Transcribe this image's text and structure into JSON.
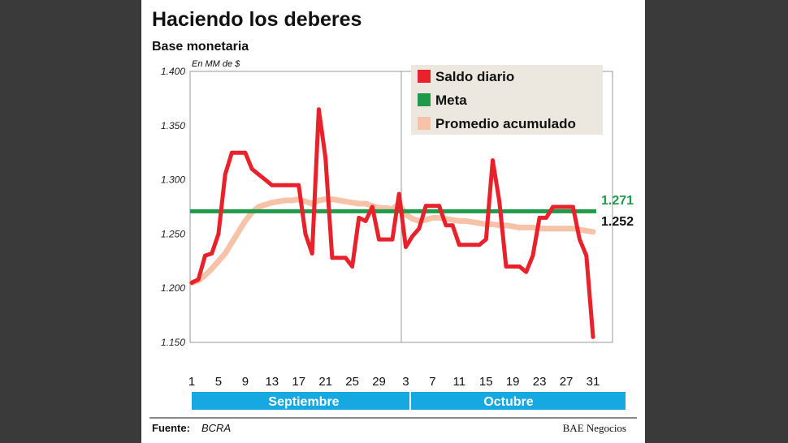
{
  "header": {
    "title": "Haciendo los deberes",
    "subtitle": "Base monetaria",
    "unit_note": "En MM de $"
  },
  "footer": {
    "source_label": "Fuente:",
    "source_value": "BCRA",
    "brand": "BAE Negocios"
  },
  "months": [
    "Septiembre",
    "Octubre"
  ],
  "end_labels": {
    "meta": "1.271",
    "promedio": "1.252"
  },
  "colors": {
    "saldo": "#e8212b",
    "meta": "#1e9a4a",
    "promedio": "#f6c3a8",
    "month_band": "#16a8e0"
  },
  "chart_data": {
    "type": "line",
    "title": "Haciendo los deberes",
    "subtitle": "Base monetaria",
    "ylabel": "En MM de $",
    "ylim": [
      1150,
      1400
    ],
    "yticks": [
      "1.150",
      "1.200",
      "1.250",
      "1.300",
      "1.350",
      "1.400"
    ],
    "xticks": [
      "1",
      "5",
      "9",
      "13",
      "17",
      "21",
      "25",
      "29",
      "3",
      "7",
      "11",
      "15",
      "19",
      "23",
      "27",
      "31"
    ],
    "grid": "vertical line at month boundary",
    "legend_position": "top-right",
    "legend": [
      "Saldo diario",
      "Meta",
      "Promedio acumulado"
    ],
    "x_days": [
      1,
      2,
      3,
      4,
      5,
      6,
      7,
      8,
      9,
      10,
      11,
      12,
      13,
      14,
      15,
      16,
      17,
      18,
      19,
      20,
      21,
      22,
      23,
      24,
      25,
      26,
      27,
      28,
      29,
      30,
      31,
      32,
      33,
      34,
      35,
      36,
      37,
      38,
      39,
      40,
      41,
      42,
      43,
      44,
      45,
      46,
      47,
      48,
      49,
      50,
      51,
      52,
      53,
      54,
      55,
      56,
      57,
      58,
      59,
      60,
      61
    ],
    "series": [
      {
        "name": "Saldo diario",
        "values": [
          1205,
          1208,
          1230,
          1232,
          1250,
          1305,
          1325,
          1325,
          1325,
          1310,
          1305,
          1300,
          1295,
          1295,
          1295,
          1295,
          1295,
          1250,
          1232,
          1365,
          1320,
          1228,
          1228,
          1228,
          1220,
          1265,
          1262,
          1275,
          1245,
          1245,
          1245,
          1287,
          1238,
          1248,
          1255,
          1276,
          1276,
          1276,
          1258,
          1258,
          1240,
          1240,
          1240,
          1240,
          1245,
          1318,
          1280,
          1220,
          1220,
          1220,
          1215,
          1230,
          1265,
          1265,
          1275,
          1275,
          1275,
          1275,
          1245,
          1230,
          1155
        ]
      },
      {
        "name": "Meta",
        "values": [
          1271,
          1271
        ]
      },
      {
        "name": "Promedio acumulado",
        "values": [
          1205,
          1207,
          1212,
          1218,
          1225,
          1232,
          1242,
          1252,
          1262,
          1270,
          1275,
          1277,
          1279,
          1280,
          1281,
          1281,
          1282,
          1280,
          1278,
          1281,
          1282,
          1282,
          1281,
          1280,
          1279,
          1278,
          1278,
          1276,
          1274,
          1274,
          1273,
          1278,
          1268,
          1264,
          1262,
          1263,
          1265,
          1265,
          1264,
          1263,
          1262,
          1262,
          1261,
          1260,
          1259,
          1259,
          1258,
          1258,
          1257,
          1256,
          1256,
          1256,
          1255,
          1255,
          1255,
          1255,
          1255,
          1255,
          1254,
          1253,
          1252
        ]
      }
    ]
  }
}
